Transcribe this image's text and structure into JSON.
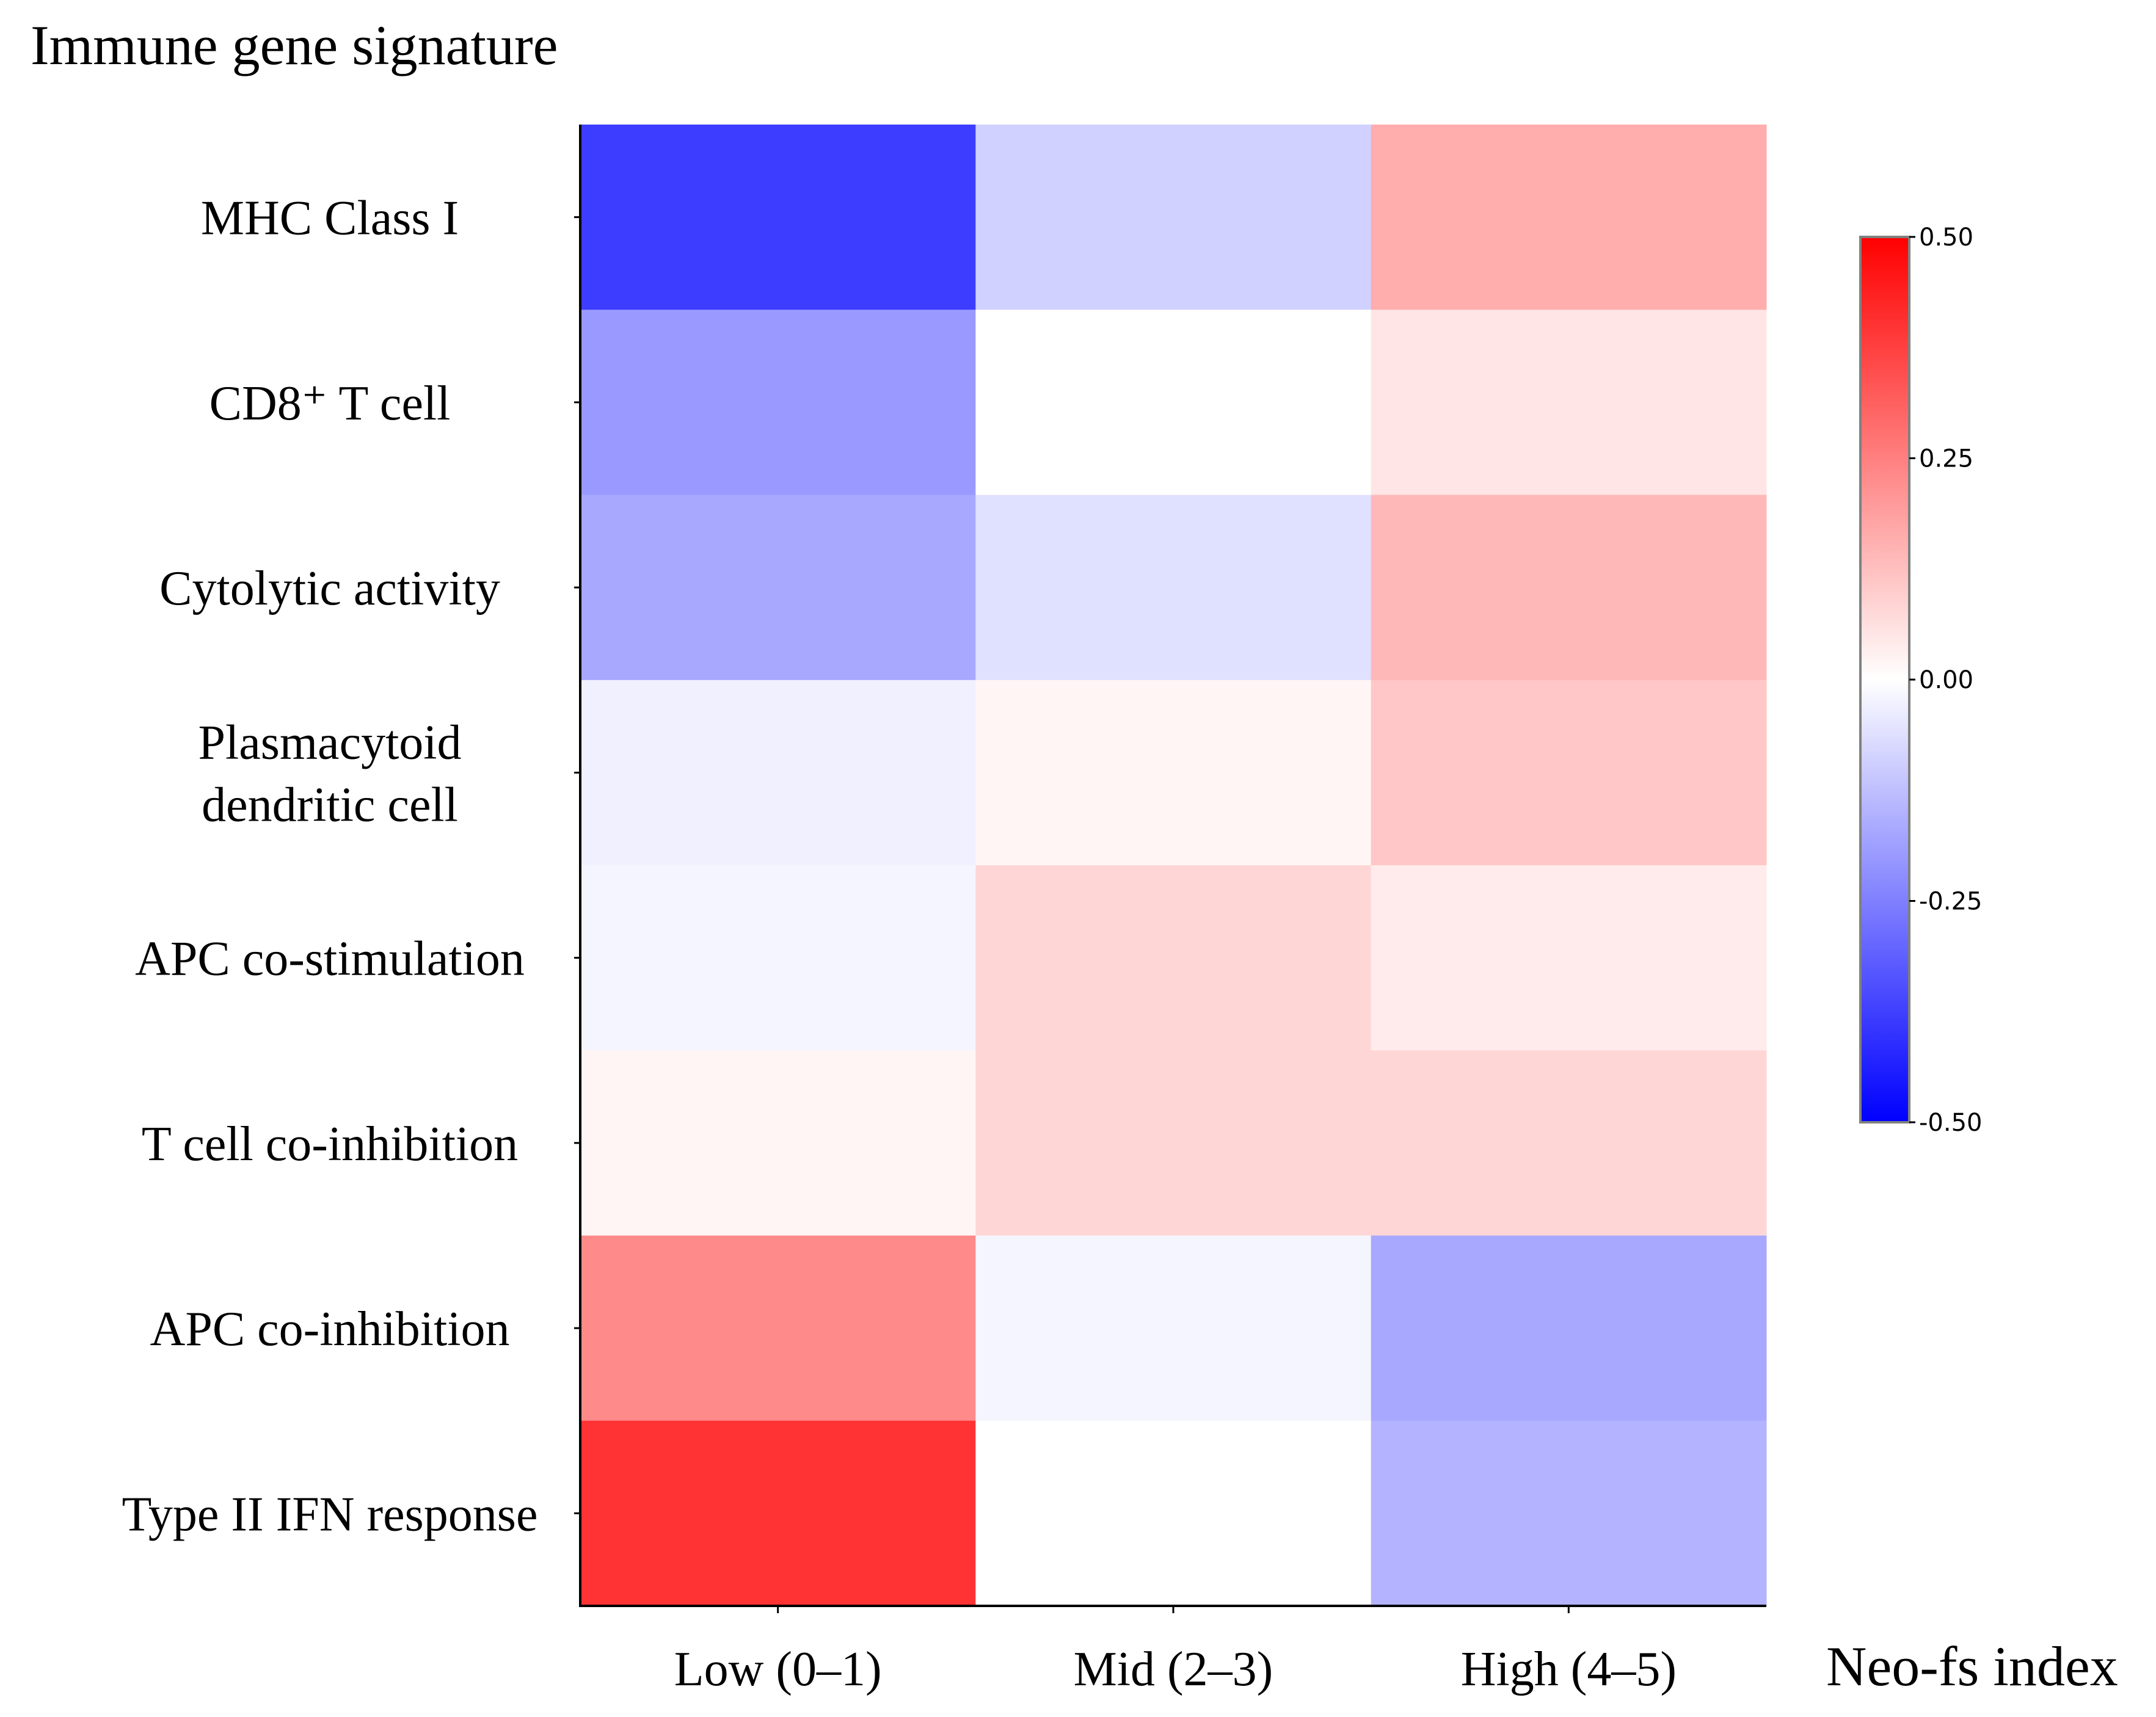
{
  "chart_data": {
    "type": "heatmap",
    "title": "Immune gene signature",
    "xlabel": "Neo-fs index",
    "ylabel": "",
    "categories": [
      "Low (0–1)",
      "Mid (2–3)",
      "High (4–5)"
    ],
    "rows": [
      {
        "label": "MHC Class I",
        "values": [
          -0.38,
          -0.09,
          0.16
        ]
      },
      {
        "label": "CD8⁺ T cell",
        "values": [
          -0.2,
          0.0,
          0.05
        ]
      },
      {
        "label": "Cytolytic activity",
        "values": [
          -0.17,
          -0.06,
          0.14
        ]
      },
      {
        "label": "Plasmacytoid dendritic cell",
        "lines": [
          "Plasmacytoid",
          "dendritic cell"
        ],
        "values": [
          -0.03,
          0.02,
          0.11
        ]
      },
      {
        "label": "APC co-stimulation",
        "values": [
          -0.02,
          0.08,
          0.04
        ]
      },
      {
        "label": "T cell co-inhibition",
        "values": [
          0.02,
          0.08,
          0.08
        ]
      },
      {
        "label": "APC co-inhibition",
        "values": [
          0.23,
          -0.02,
          -0.17
        ]
      },
      {
        "label": "Type II IFN response",
        "values": [
          0.4,
          0.0,
          -0.15
        ]
      }
    ],
    "colorbar": {
      "range": [
        -0.5,
        0.5
      ],
      "ticks": [
        0.5,
        0.25,
        0.0,
        -0.25,
        -0.5
      ],
      "tick_labels": [
        "0.50",
        "0.25",
        "0.00",
        "-0.25",
        "-0.50"
      ],
      "colormap": "bwr",
      "low_color": "#0000ff",
      "mid_color": "#ffffff",
      "high_color": "#ff0000"
    }
  }
}
